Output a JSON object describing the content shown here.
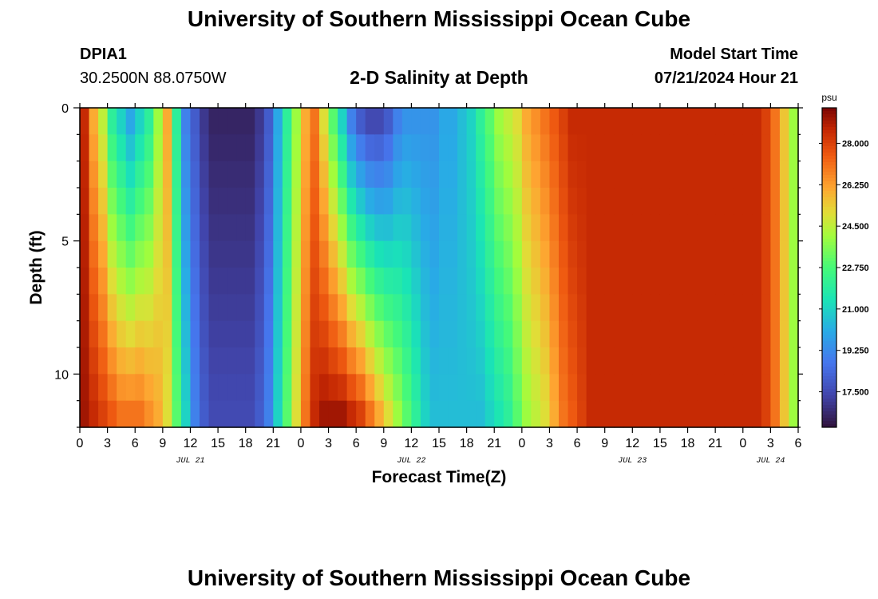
{
  "header": {
    "title_top": "University of Southern Mississippi Ocean Cube",
    "title_bottom": "University of Southern Mississippi Ocean Cube",
    "station": "DPIA1",
    "coords": "30.2500N  88.0750W",
    "subtitle": "2-D Salinity at Depth",
    "start_label": "Model Start Time",
    "start_value": "07/21/2024 Hour 21"
  },
  "chart_data": {
    "type": "heatmap",
    "title": "2-D Salinity at Depth",
    "xlabel": "Forecast Time(Z)",
    "ylabel": "Depth (ft)",
    "x_start_hour": 0,
    "x_end_hour": 78,
    "x_tick_labels": [
      "0",
      "3",
      "6",
      "9",
      "12",
      "15",
      "18",
      "21",
      "0",
      "3",
      "6",
      "9",
      "12",
      "15",
      "18",
      "21",
      "0",
      "3",
      "6",
      "9",
      "12",
      "15",
      "18",
      "21",
      "0",
      "3",
      "6"
    ],
    "date_labels": [
      {
        "hour": 12,
        "label": "JUL 21"
      },
      {
        "hour": 36,
        "label": "JUL 22"
      },
      {
        "hour": 60,
        "label": "JUL 23"
      },
      {
        "hour": 75,
        "label": "JUL 24"
      }
    ],
    "y_range_ft": [
      0,
      12
    ],
    "y_ticks": [
      0,
      5,
      10
    ],
    "colorbar": {
      "unit": "psu",
      "range": [
        16.0,
        29.5
      ],
      "ticks": [
        "28.000",
        "26.250",
        "24.500",
        "22.750",
        "21.000",
        "19.250",
        "17.500"
      ],
      "tick_values": [
        28.0,
        26.25,
        24.5,
        22.75,
        21.0,
        19.25,
        17.5
      ]
    },
    "columns_per_hour": 1,
    "surface_salinity_psu": [
      28.5,
      26,
      24.5,
      22,
      21,
      20,
      21,
      22,
      24,
      26,
      22,
      19,
      18,
      17,
      16.5,
      16.5,
      16.5,
      16.5,
      16.5,
      17,
      18,
      20,
      22,
      24,
      26,
      27,
      25,
      23,
      21,
      19,
      18,
      17.5,
      17.5,
      18,
      19,
      19.5,
      19.5,
      19.5,
      19.5,
      20,
      20,
      20.5,
      21,
      22,
      23,
      24,
      24.5,
      25,
      26,
      26.5,
      27,
      27.5,
      28,
      28.5,
      28.5,
      28.5,
      28.5,
      28.5,
      28.5,
      28.5,
      28.5,
      28.5,
      28.5,
      28.5,
      28.5,
      28.5,
      28.5,
      28.5,
      28.5,
      28.5,
      28.5,
      28.5,
      28.5,
      28.5,
      28,
      27,
      25.5,
      24
    ],
    "bottom_salinity_psu": [
      29,
      28.5,
      28,
      27.5,
      27,
      27,
      27,
      26.5,
      26,
      25,
      23,
      21,
      19,
      18,
      17.5,
      17.5,
      17.5,
      17.5,
      17.5,
      18,
      19,
      21,
      23,
      25,
      27,
      28.5,
      29,
      29,
      29,
      28.5,
      28,
      27,
      26,
      25,
      24,
      23,
      22,
      21,
      20.5,
      20.5,
      20.5,
      20.5,
      20.5,
      20.5,
      21,
      21.5,
      22,
      23,
      24,
      24.5,
      25,
      26,
      27,
      27.5,
      28,
      28.5,
      28.5,
      28.5,
      28.5,
      28.5,
      28.5,
      28.5,
      28.5,
      28.5,
      28.5,
      28.5,
      28.5,
      28.5,
      28.5,
      28.5,
      28.5,
      28.5,
      28.5,
      28.5,
      28,
      27,
      25.5,
      24
    ]
  }
}
